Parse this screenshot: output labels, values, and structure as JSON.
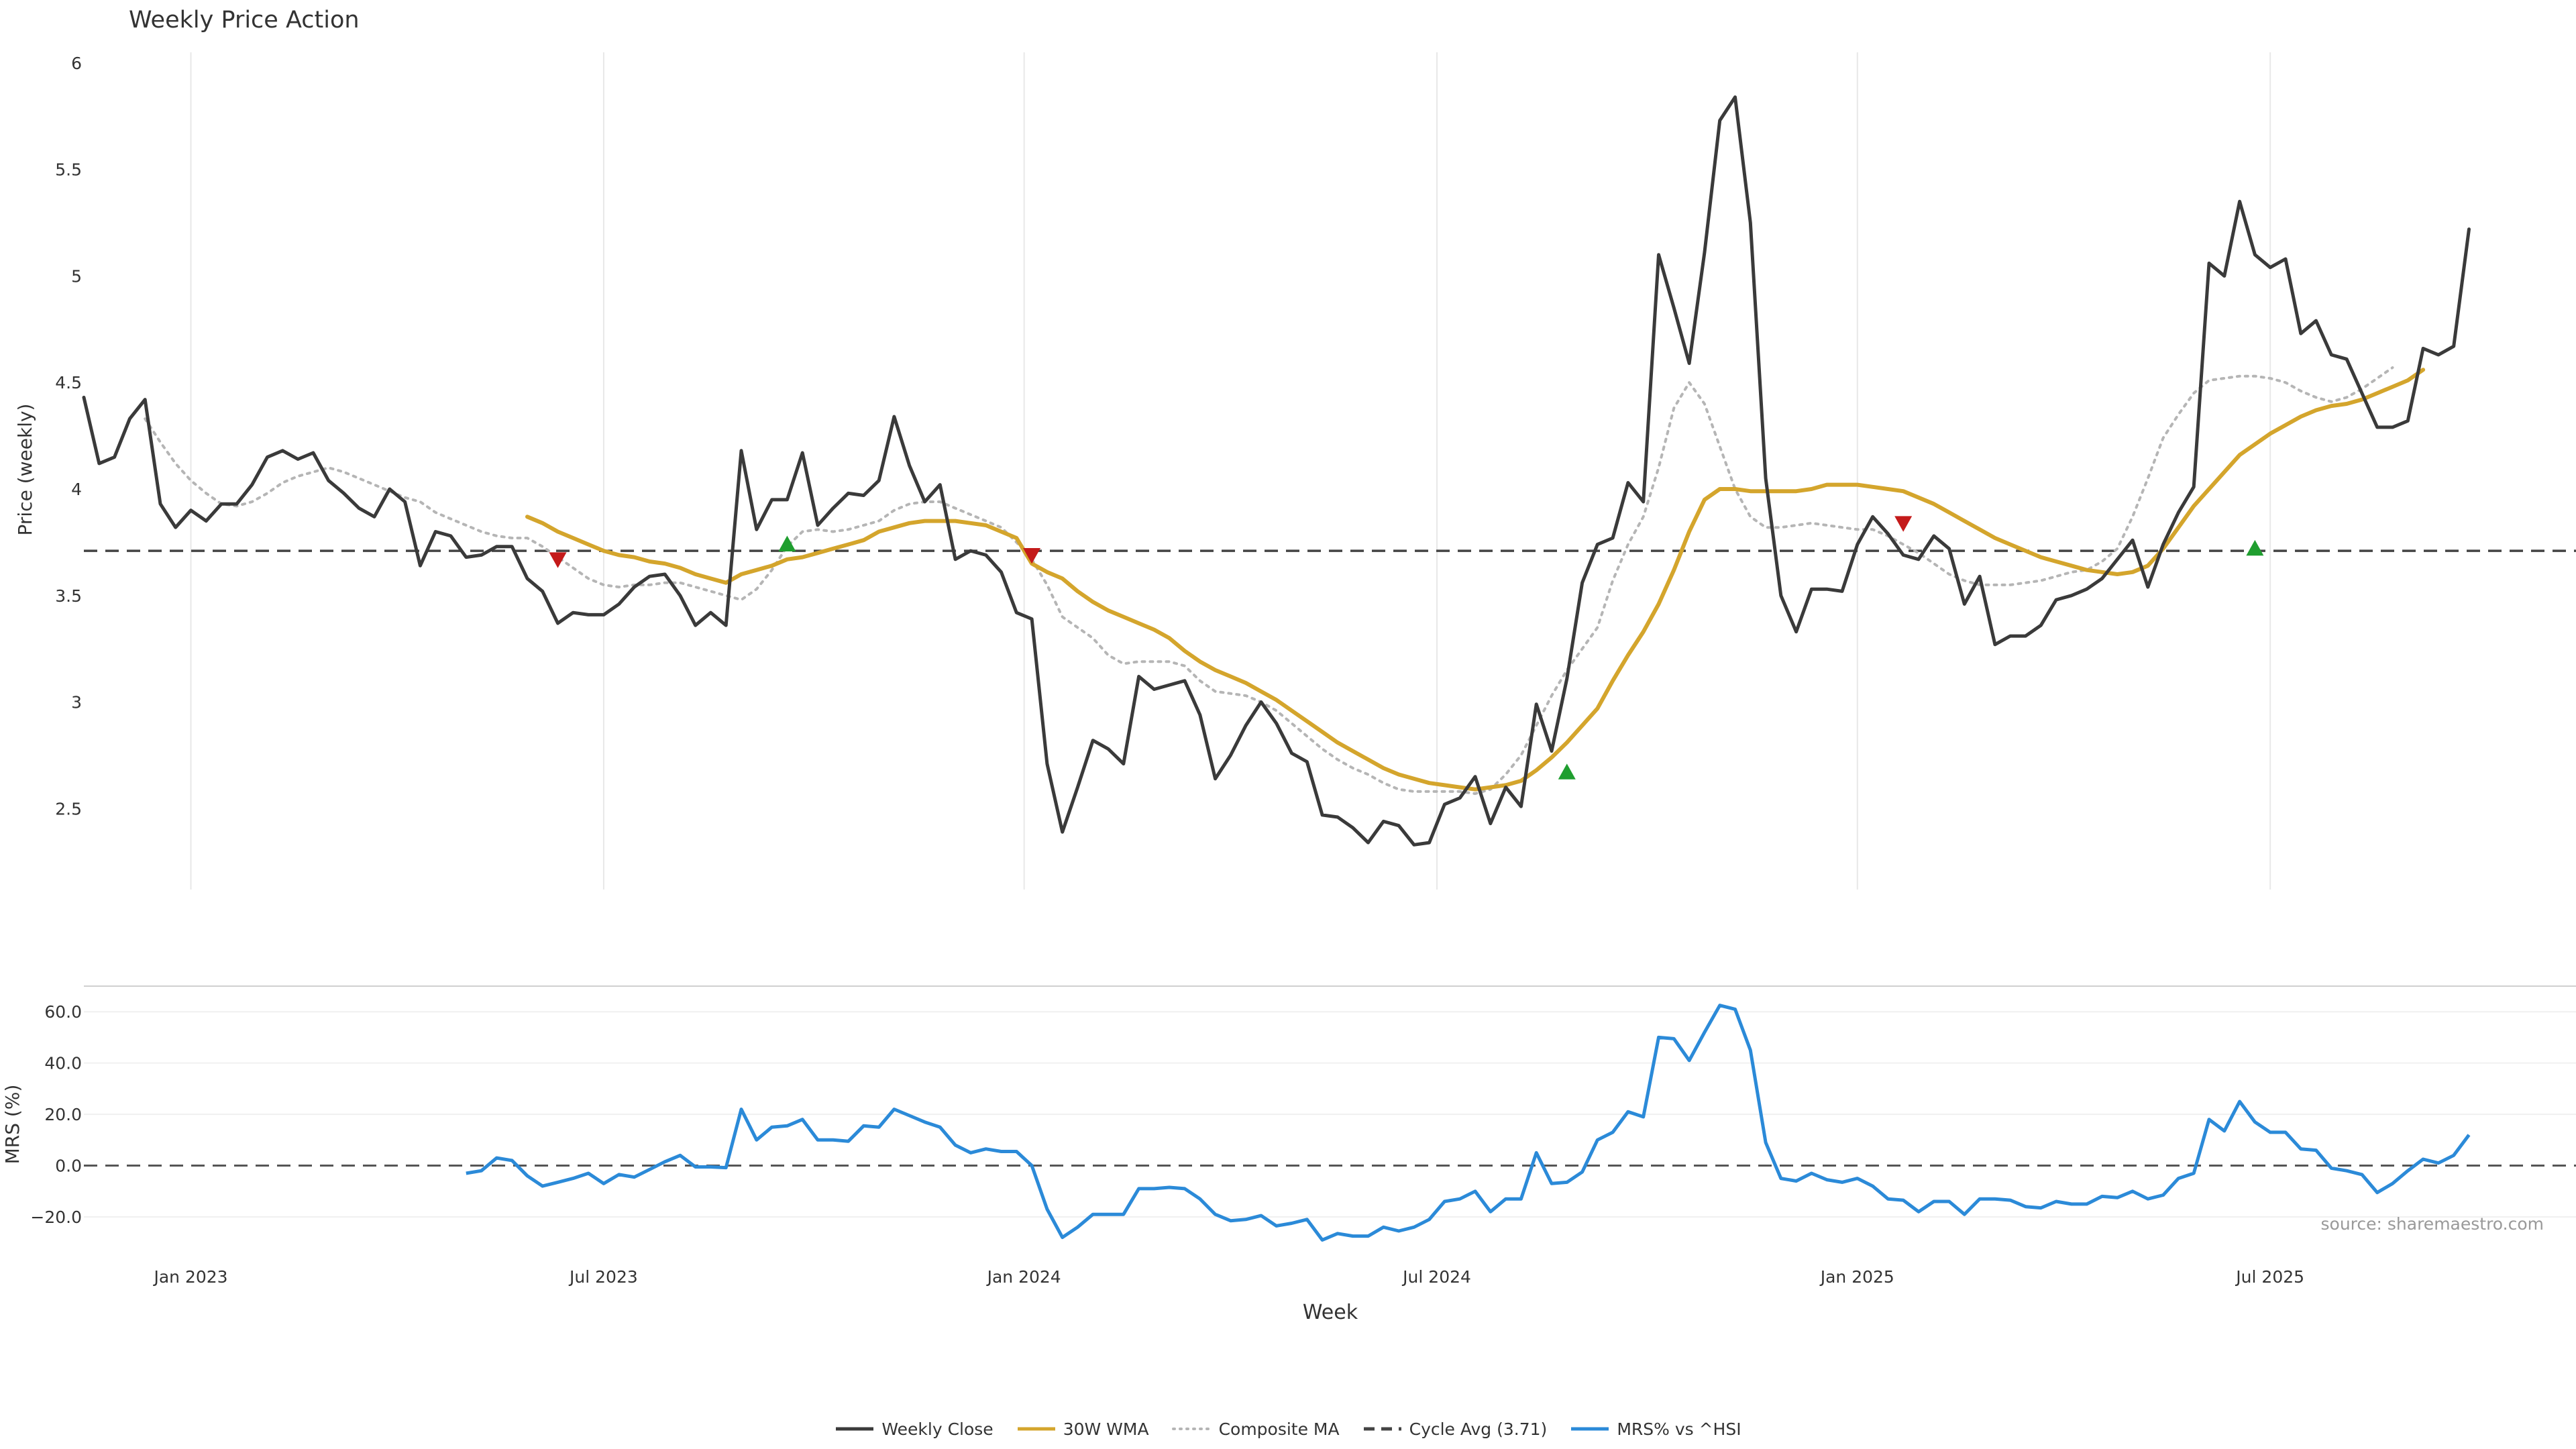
{
  "title": "Weekly Price Action",
  "source_note": "source: sharemaestro.com",
  "legend": [
    {
      "label": "Weekly Close",
      "color": "#3a3a3a",
      "style": "solid"
    },
    {
      "label": "30W WMA",
      "color": "#d4a52c",
      "style": "solid"
    },
    {
      "label": "Composite MA",
      "color": "#b5b5b5",
      "style": "dotted"
    },
    {
      "label": "Cycle Avg (3.71)",
      "color": "#444444",
      "style": "dashed"
    },
    {
      "label": "MRS% vs ^HSI",
      "color": "#2b8ad8",
      "style": "solid"
    }
  ],
  "chart_data": [
    {
      "type": "line",
      "title": "Weekly Price Action",
      "xlabel": "",
      "ylabel": "Price (weekly)",
      "ylim": [
        2.12,
        6.05
      ],
      "yticks": [
        2.5,
        3,
        3.5,
        4,
        4.5,
        5,
        5.5,
        6
      ],
      "ytick_labels": [
        "2.5",
        "3",
        "3.5",
        "4",
        "4.5",
        "5",
        "5.5",
        "6"
      ],
      "x_range_week_index": [
        0,
        163
      ],
      "xticks_week_index": [
        7,
        34,
        61.5,
        88.5,
        116,
        143
      ],
      "xtick_labels": [
        "Jan 2023",
        "Jul 2023",
        "Jan 2024",
        "Jul 2024",
        "Jan 2025",
        "Jul 2025"
      ],
      "grid": "vertical",
      "cycle_avg": 3.71,
      "series": [
        {
          "name": "Weekly Close",
          "values": [
            4.43,
            4.12,
            4.15,
            4.33,
            4.42,
            3.93,
            3.82,
            3.9,
            3.85,
            3.93,
            3.93,
            4.02,
            4.15,
            4.18,
            4.14,
            4.17,
            4.04,
            3.98,
            3.91,
            3.87,
            4.0,
            3.94,
            3.64,
            3.8,
            3.78,
            3.68,
            3.69,
            3.73,
            3.73,
            3.58,
            3.52,
            3.37,
            3.42,
            3.41,
            3.41,
            3.46,
            3.54,
            3.59,
            3.6,
            3.5,
            3.36,
            3.42,
            3.36,
            4.18,
            3.81,
            3.95,
            3.95,
            4.17,
            3.83,
            3.91,
            3.98,
            3.97,
            4.04,
            4.34,
            4.11,
            3.94,
            4.02,
            3.67,
            3.71,
            3.69,
            3.61,
            3.42,
            3.39,
            2.71,
            2.39,
            2.6,
            2.82,
            2.78,
            2.71,
            3.12,
            3.06,
            3.08,
            3.1,
            2.94,
            2.64,
            2.75,
            2.89,
            3.0,
            2.9,
            2.76,
            2.72,
            2.47,
            2.46,
            2.41,
            2.34,
            2.44,
            2.42,
            2.33,
            2.34,
            2.52,
            2.55,
            2.65,
            2.43,
            2.6,
            2.51,
            2.99,
            2.77,
            3.11,
            3.56,
            3.74,
            3.77,
            4.03,
            3.94,
            5.1,
            4.85,
            4.59,
            5.11,
            5.73,
            5.84,
            5.25,
            4.05,
            3.5,
            3.33,
            3.53,
            3.53,
            3.52,
            3.74,
            3.87,
            3.79,
            3.69,
            3.67,
            3.78,
            3.72,
            3.46,
            3.59,
            3.27,
            3.31,
            3.31,
            3.36,
            3.48,
            3.5,
            3.53,
            3.58,
            3.67,
            3.76,
            3.54,
            3.74,
            3.89,
            4.01,
            5.06,
            5.0,
            5.35,
            5.1,
            5.04,
            5.08,
            4.73,
            4.79,
            4.63,
            4.61,
            4.45,
            4.29,
            4.29,
            4.32,
            4.66,
            4.63,
            4.67,
            5.22
          ]
        },
        {
          "name": "30W WMA",
          "start_index": 29,
          "values": [
            3.87,
            3.84,
            3.8,
            3.77,
            3.74,
            3.71,
            3.69,
            3.68,
            3.66,
            3.65,
            3.63,
            3.6,
            3.58,
            3.56,
            3.6,
            3.62,
            3.64,
            3.67,
            3.68,
            3.7,
            3.72,
            3.74,
            3.76,
            3.8,
            3.82,
            3.84,
            3.85,
            3.85,
            3.85,
            3.84,
            3.83,
            3.8,
            3.77,
            3.65,
            3.61,
            3.58,
            3.52,
            3.47,
            3.43,
            3.4,
            3.37,
            3.34,
            3.3,
            3.24,
            3.19,
            3.15,
            3.12,
            3.09,
            3.05,
            3.01,
            2.96,
            2.91,
            2.86,
            2.81,
            2.77,
            2.73,
            2.69,
            2.66,
            2.64,
            2.62,
            2.61,
            2.6,
            2.59,
            2.6,
            2.61,
            2.63,
            2.68,
            2.74,
            2.81,
            2.89,
            2.97,
            3.1,
            3.22,
            3.33,
            3.46,
            3.62,
            3.8,
            3.95,
            4.0,
            4.0,
            3.99,
            3.99,
            3.99,
            3.99,
            4.0,
            4.02,
            4.02,
            4.02,
            4.01,
            4.0,
            3.99,
            3.96,
            3.93,
            3.89,
            3.85,
            3.81,
            3.77,
            3.74,
            3.71,
            3.68,
            3.66,
            3.64,
            3.62,
            3.61,
            3.6,
            3.61,
            3.64,
            3.72,
            3.82,
            3.92,
            4.0,
            4.08,
            4.16,
            4.21,
            4.26,
            4.3,
            4.34,
            4.37,
            4.39,
            4.4,
            4.42,
            4.45,
            4.48,
            4.51,
            4.56
          ]
        },
        {
          "name": "Composite MA",
          "start_index": 4,
          "values": [
            4.33,
            4.22,
            4.12,
            4.04,
            3.98,
            3.93,
            3.92,
            3.94,
            3.98,
            4.03,
            4.06,
            4.08,
            4.1,
            4.08,
            4.05,
            4.02,
            3.99,
            3.96,
            3.94,
            3.89,
            3.86,
            3.83,
            3.8,
            3.78,
            3.77,
            3.77,
            3.73,
            3.68,
            3.63,
            3.58,
            3.55,
            3.54,
            3.55,
            3.55,
            3.56,
            3.56,
            3.54,
            3.52,
            3.5,
            3.48,
            3.53,
            3.62,
            3.73,
            3.8,
            3.81,
            3.8,
            3.81,
            3.83,
            3.85,
            3.9,
            3.93,
            3.94,
            3.94,
            3.91,
            3.88,
            3.85,
            3.82,
            3.75,
            3.67,
            3.55,
            3.4,
            3.35,
            3.3,
            3.22,
            3.18,
            3.19,
            3.19,
            3.19,
            3.17,
            3.1,
            3.05,
            3.04,
            3.03,
            3.0,
            2.96,
            2.9,
            2.84,
            2.78,
            2.73,
            2.69,
            2.66,
            2.62,
            2.59,
            2.58,
            2.58,
            2.58,
            2.58,
            2.57,
            2.59,
            2.66,
            2.75,
            2.89,
            3.03,
            3.15,
            3.25,
            3.35,
            3.57,
            3.74,
            3.87,
            4.1,
            4.38,
            4.5,
            4.4,
            4.2,
            4.0,
            3.87,
            3.82,
            3.82,
            3.83,
            3.84,
            3.83,
            3.82,
            3.81,
            3.81,
            3.78,
            3.74,
            3.7,
            3.65,
            3.6,
            3.57,
            3.55,
            3.55,
            3.55,
            3.56,
            3.57,
            3.59,
            3.61,
            3.62,
            3.66,
            3.72,
            3.87,
            4.05,
            4.24,
            4.35,
            4.45,
            4.51,
            4.52,
            4.53,
            4.53,
            4.52,
            4.5,
            4.46,
            4.43,
            4.41,
            4.43,
            4.47,
            4.52,
            4.57
          ]
        }
      ],
      "markers": [
        {
          "type": "sell",
          "index": 31,
          "value": 3.67
        },
        {
          "type": "buy",
          "index": 46,
          "value": 3.74
        },
        {
          "type": "sell",
          "index": 62,
          "value": 3.69
        },
        {
          "type": "buy",
          "index": 97,
          "value": 2.67
        },
        {
          "type": "sell",
          "index": 119,
          "value": 3.84
        },
        {
          "type": "buy",
          "index": 142,
          "value": 3.72
        }
      ]
    },
    {
      "type": "line",
      "xlabel": "Week",
      "ylabel": "MRS (%)",
      "ylim": [
        -25.5,
        70
      ],
      "yticks": [
        -20,
        0,
        20,
        40,
        60
      ],
      "ytick_labels": [
        "−20.0",
        "0.0",
        "20.0",
        "40.0",
        "60.0"
      ],
      "xtick_labels": [
        "Jan 2023",
        "Jul 2023",
        "Jan 2024",
        "Jul 2024",
        "Jan 2025",
        "Jul 2025"
      ],
      "reference_line": 0,
      "series": [
        {
          "name": "MRS% vs ^HSI",
          "start_index": 25,
          "values": [
            -3,
            -2,
            3,
            2,
            -4,
            -8,
            -6.5,
            -5,
            -3,
            -7,
            -3.5,
            -4.5,
            -1.5,
            1.5,
            4,
            -0.5,
            -0.5,
            -0.8,
            22,
            10,
            15,
            15.5,
            18,
            10,
            10,
            9.5,
            15.5,
            15,
            22,
            19.5,
            17,
            15,
            8,
            5,
            6.5,
            5.5,
            5.5,
            0,
            -17,
            -28,
            -24,
            -19,
            -19,
            -19,
            -9,
            -9,
            -8.5,
            -9,
            -13,
            -19,
            -21.5,
            -21,
            -19.5,
            -23.5,
            -22.5,
            -21,
            -29,
            -26.5,
            -27.5,
            -27.5,
            -24,
            -25.5,
            -24,
            -21,
            -14,
            -13,
            -10,
            -18,
            -13,
            -13,
            5,
            -7,
            -6.5,
            -2.5,
            10,
            13,
            21,
            19,
            50,
            49.5,
            41,
            52,
            62.5,
            61,
            45,
            9,
            -5,
            -6,
            -3,
            -5.5,
            -6.5,
            -5,
            -8,
            -13,
            -13.5,
            -18,
            -14,
            -14,
            -19,
            -13,
            -13,
            -13.5,
            -16,
            -16.5,
            -14,
            -15,
            -15,
            -12,
            -12.5,
            -10,
            -13,
            -11.5,
            -5,
            -3,
            18,
            13.5,
            25,
            17,
            13,
            13,
            6.5,
            6,
            -1,
            -2,
            -3.5,
            -10.5,
            -7,
            -2,
            2.5,
            1,
            4,
            12
          ]
        }
      ]
    }
  ]
}
